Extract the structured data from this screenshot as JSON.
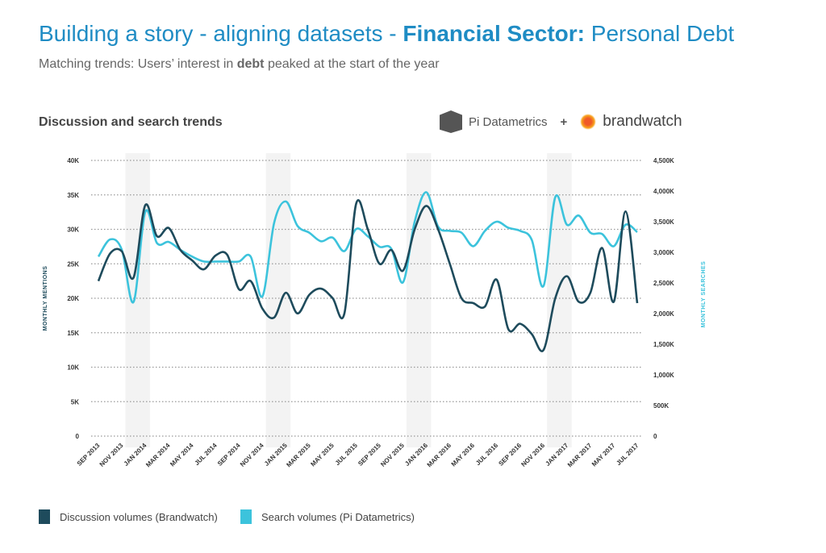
{
  "header": {
    "title_part1": "Building a story - aligning datasets - ",
    "title_bold": "Financial Sector:",
    "title_part2": " Personal Debt",
    "subtitle_part1": "Matching trends: Users’ interest in ",
    "subtitle_bold": "debt",
    "subtitle_part2": " peaked at the start of the year"
  },
  "logos": {
    "pi": "Pi Datametrics",
    "plus": "+",
    "brandwatch": "brandwatch"
  },
  "colors": {
    "discussion": "#1e4b5c",
    "search": "#3cc3dc",
    "title": "#1f8cc4"
  },
  "chart_data": {
    "type": "line",
    "title": "Discussion and search trends",
    "ylabel": "MONTHLY MENTIONS",
    "y2label": "MONTHLY SEARCHES",
    "ylim": [
      0,
      40
    ],
    "y2lim": [
      0,
      4500
    ],
    "yticks": [
      "0",
      "5K",
      "10K",
      "15K",
      "20K",
      "25K",
      "30K",
      "35K",
      "40K"
    ],
    "y2ticks": [
      "0",
      "500K",
      "1,000K",
      "1,500K",
      "2,000K",
      "2,500K",
      "3,000K",
      "3,500K",
      "4,000K",
      "4,500K"
    ],
    "xticks": [
      "SEP 2013",
      "NOV 2013",
      "JAN 2014",
      "MAR 2014",
      "MAY 2014",
      "JUL 2014",
      "SEP 2014",
      "NOV 2014",
      "JAN 2015",
      "MAR 2015",
      "MAY 2015",
      "JUL 2015",
      "SEP 2015",
      "NOV 2015",
      "JAN 2016",
      "MAR 2016",
      "MAY 2016",
      "JUL 2016",
      "SEP 2016",
      "NOV 2016",
      "JAN 2017",
      "MAR 2017",
      "MAY 2017",
      "JUL 2017"
    ],
    "x_range": "Sep 2013 - Jul 2017 (monthly)",
    "grid": true,
    "legend_position": "bottom-left",
    "series": [
      {
        "name": "Discussion volumes (Brandwatch)",
        "axis": "left",
        "unit": "K mentions",
        "values": [
          22.5,
          26.5,
          26.8,
          23,
          33.5,
          29,
          30.2,
          27,
          25.5,
          24.2,
          26.2,
          26.3,
          21.3,
          22.5,
          18.5,
          17.2,
          20.8,
          17.8,
          20.5,
          21.4,
          20,
          17.8,
          33.7,
          30,
          25,
          27,
          24,
          30,
          33.4,
          30,
          25,
          20,
          19.3,
          18.8,
          22.7,
          15.5,
          16.3,
          14.8,
          12.5,
          20,
          23.2,
          19.5,
          20.8,
          27.3,
          19.5,
          32.6,
          19.3
        ]
      },
      {
        "name": "Search volumes (Pi Datametrics)",
        "axis": "right",
        "unit": "K searches",
        "values": [
          2930,
          3210,
          3040,
          2190,
          3660,
          3150,
          3170,
          3040,
          2930,
          2850,
          2850,
          2850,
          2850,
          2930,
          2280,
          3480,
          3830,
          3430,
          3320,
          3180,
          3240,
          3020,
          3380,
          3260,
          3090,
          3060,
          2510,
          3500,
          3980,
          3420,
          3350,
          3320,
          3100,
          3350,
          3500,
          3400,
          3350,
          3200,
          2450,
          3900,
          3450,
          3600,
          3320,
          3300,
          3100,
          3450,
          3330
        ]
      }
    ]
  }
}
